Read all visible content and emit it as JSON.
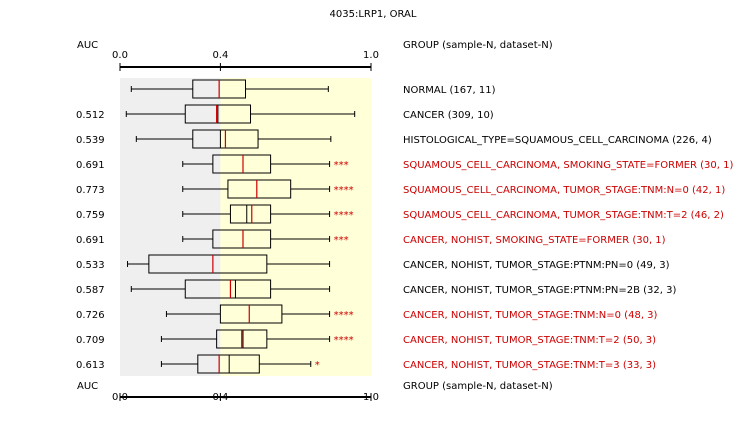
{
  "chart_data": {
    "type": "boxplot",
    "title": "4035:LRP1, ORAL",
    "auc_header": "AUC",
    "group_header": "GROUP (sample-N, dataset-N)",
    "x_ticks": [
      "0.0",
      "0.4",
      "1.0"
    ],
    "x_tick_values": [
      0.0,
      0.4,
      1.0
    ],
    "xlim": [
      0.0,
      1.0
    ],
    "shaded_regions": [
      {
        "from": 0.0,
        "to": 0.4,
        "color": "#efefef"
      },
      {
        "from": 0.4,
        "to": 1.0,
        "color": "#ffffd8"
      }
    ],
    "colors": {
      "normal": "#000000",
      "significant": "#cc0000",
      "median": "#cc0000",
      "box_fill": "#ffffff",
      "box_stroke": "#000000"
    },
    "rows": [
      {
        "auc": "",
        "group": "NORMAL (167, 11)",
        "highlight": false,
        "stars": "",
        "whisker_low": 0.045,
        "q1": 0.29,
        "median": 0.395,
        "q3": 0.5,
        "whisker_high": 0.83,
        "mean": 0.395
      },
      {
        "auc": "0.512",
        "group": "CANCER (309, 10)",
        "highlight": false,
        "stars": "",
        "whisker_low": 0.025,
        "q1": 0.26,
        "median": 0.385,
        "q3": 0.52,
        "whisker_high": 0.935,
        "mean": 0.39
      },
      {
        "auc": "0.539",
        "group": "HISTOLOGICAL_TYPE=SQUAMOUS_CELL_CARCINOMA (226, 4)",
        "highlight": false,
        "stars": "",
        "whisker_low": 0.065,
        "q1": 0.29,
        "median": 0.42,
        "q3": 0.55,
        "whisker_high": 0.84,
        "mean": 0.4
      },
      {
        "auc": "0.691",
        "group": "SQUAMOUS_CELL_CARCINOMA, SMOKING_STATE=FORMER (30, 1)",
        "highlight": true,
        "stars": "***",
        "whisker_low": 0.25,
        "q1": 0.37,
        "median": 0.49,
        "q3": 0.6,
        "whisker_high": 0.835,
        "mean": 0.49
      },
      {
        "auc": "0.773",
        "group": "SQUAMOUS_CELL_CARCINOMA, TUMOR_STAGE:TNM:N=0 (42, 1)",
        "highlight": true,
        "stars": "****",
        "whisker_low": 0.25,
        "q1": 0.43,
        "median": 0.545,
        "q3": 0.68,
        "whisker_high": 0.835,
        "mean": 0.545
      },
      {
        "auc": "0.759",
        "group": "SQUAMOUS_CELL_CARCINOMA, TUMOR_STAGE:TNM:T=2 (46, 2)",
        "highlight": true,
        "stars": "****",
        "whisker_low": 0.25,
        "q1": 0.44,
        "median": 0.525,
        "q3": 0.6,
        "whisker_high": 0.835,
        "mean": 0.505
      },
      {
        "auc": "0.691",
        "group": "CANCER, NOHIST, SMOKING_STATE=FORMER (30, 1)",
        "highlight": true,
        "stars": "***",
        "whisker_low": 0.25,
        "q1": 0.37,
        "median": 0.49,
        "q3": 0.6,
        "whisker_high": 0.835,
        "mean": 0.49
      },
      {
        "auc": "0.533",
        "group": "CANCER, NOHIST, TUMOR_STAGE:PTNM:PN=0 (49, 3)",
        "highlight": false,
        "stars": "",
        "whisker_low": 0.03,
        "q1": 0.115,
        "median": 0.37,
        "q3": 0.585,
        "whisker_high": 0.835,
        "mean": 0.37
      },
      {
        "auc": "0.587",
        "group": "CANCER, NOHIST, TUMOR_STAGE:PTNM:PN=2B (32, 3)",
        "highlight": false,
        "stars": "",
        "whisker_low": 0.045,
        "q1": 0.26,
        "median": 0.44,
        "q3": 0.6,
        "whisker_high": 0.835,
        "mean": 0.46
      },
      {
        "auc": "0.726",
        "group": "CANCER, NOHIST, TUMOR_STAGE:TNM:N=0 (48, 3)",
        "highlight": true,
        "stars": "****",
        "whisker_low": 0.185,
        "q1": 0.4,
        "median": 0.515,
        "q3": 0.645,
        "whisker_high": 0.835,
        "mean": 0.515
      },
      {
        "auc": "0.709",
        "group": "CANCER, NOHIST, TUMOR_STAGE:TNM:T=2 (50, 3)",
        "highlight": true,
        "stars": "****",
        "whisker_low": 0.165,
        "q1": 0.385,
        "median": 0.485,
        "q3": 0.585,
        "whisker_high": 0.835,
        "mean": 0.49
      },
      {
        "auc": "0.613",
        "group": "CANCER, NOHIST, TUMOR_STAGE:TNM:T=3 (33, 3)",
        "highlight": true,
        "stars": "*",
        "whisker_low": 0.165,
        "q1": 0.31,
        "median": 0.395,
        "q3": 0.555,
        "whisker_high": 0.76,
        "mean": 0.435
      }
    ]
  }
}
